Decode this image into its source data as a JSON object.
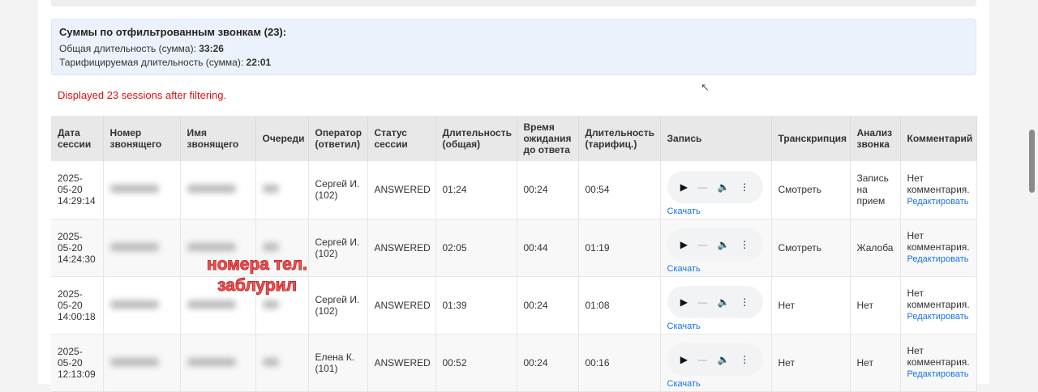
{
  "summary": {
    "title": "Суммы по отфильтрованным звонкам (23):",
    "total_label": "Общая длительность (сумма): ",
    "total_value": "33:26",
    "billed_label": "Тарифицируемая длительность (сумма): ",
    "billed_value": "22:01"
  },
  "message": "Displayed 23 sessions after filtering.",
  "overlay_text": [
    "номера тел.",
    "заблурил"
  ],
  "columns": [
    "Дата сессии",
    "Номер звонящего",
    "Имя звонящего",
    "Очереди",
    "Оператор (ответил)",
    "Статус сессии",
    "Длительность (общая)",
    "Время ожидания до ответа",
    "Длительность (тарифиц.)",
    "Запись",
    "Транскрипция",
    "Анализ звонка",
    "Комментарий"
  ],
  "download_label": "Скачать",
  "edit_label": "Редактировать",
  "rows": [
    {
      "date": "2025-05-20 14:29:14",
      "operator": "Сергей И. (102)",
      "status": "ANSWERED",
      "duration": "01:24",
      "wait": "00:24",
      "billed": "00:54",
      "transcript": "Смотреть",
      "analysis": "Запись на прием",
      "comment": "Нет комментария."
    },
    {
      "date": "2025-05-20 14:24:30",
      "operator": "Сергей И. (102)",
      "status": "ANSWERED",
      "duration": "02:05",
      "wait": "00:44",
      "billed": "01:19",
      "transcript": "Смотреть",
      "analysis": "Жалоба",
      "comment": "Нет комментария."
    },
    {
      "date": "2025-05-20 14:00:18",
      "operator": "Сергей И. (102)",
      "status": "ANSWERED",
      "duration": "01:39",
      "wait": "00:24",
      "billed": "01:08",
      "transcript": "Нет",
      "analysis": "Нет",
      "comment": "Нет комментария."
    },
    {
      "date": "2025-05-20 12:13:09",
      "operator": "Елена К. (101)",
      "status": "ANSWERED",
      "duration": "00:52",
      "wait": "00:24",
      "billed": "00:16",
      "transcript": "Нет",
      "analysis": "Нет",
      "comment": "Нет комментария."
    }
  ]
}
